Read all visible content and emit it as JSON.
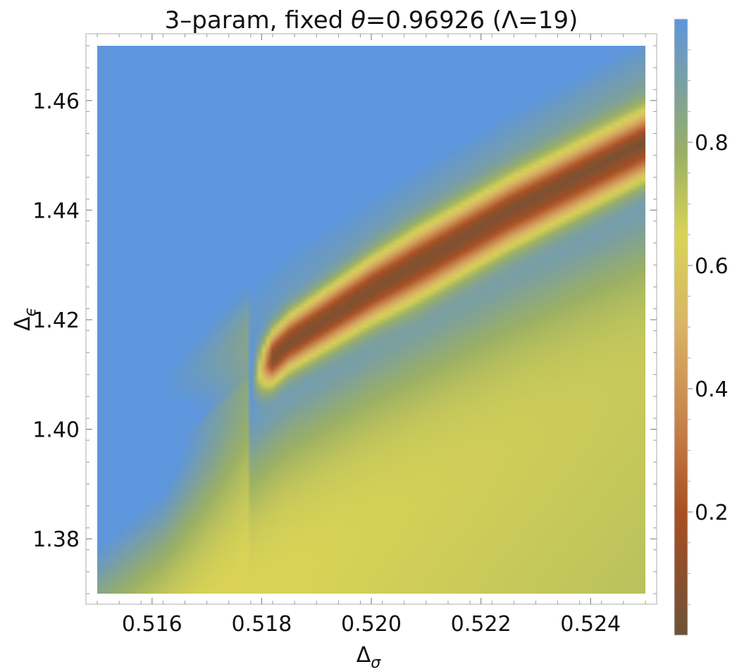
{
  "chart_data": {
    "type": "heatmap",
    "title": {
      "prefix": "3–param, fixed ",
      "theta_symbol": "θ",
      "theta_value": "=0.96926",
      "suffix": " (Λ=19)"
    },
    "xlabel": {
      "base": "Δ",
      "sub": "σ"
    },
    "ylabel": {
      "base": "Δ",
      "sub": "ϵ"
    },
    "xlim": [
      0.515,
      0.525
    ],
    "ylim": [
      1.37,
      1.47
    ],
    "xticks": [
      {
        "value": 0.516,
        "label": "0.516"
      },
      {
        "value": 0.518,
        "label": "0.518"
      },
      {
        "value": 0.52,
        "label": "0.520"
      },
      {
        "value": 0.522,
        "label": "0.522"
      },
      {
        "value": 0.524,
        "label": "0.524"
      }
    ],
    "yticks": [
      {
        "value": 1.38,
        "label": "1.38"
      },
      {
        "value": 1.4,
        "label": "1.40"
      },
      {
        "value": 1.42,
        "label": "1.42"
      },
      {
        "value": 1.44,
        "label": "1.44"
      },
      {
        "value": 1.46,
        "label": "1.46"
      }
    ],
    "colorbar": {
      "range": [
        0.0,
        1.0
      ],
      "ticks": [
        {
          "value": 0.2,
          "label": "0.2"
        },
        {
          "value": 0.4,
          "label": "0.4"
        },
        {
          "value": 0.6,
          "label": "0.6"
        },
        {
          "value": 0.8,
          "label": "0.8"
        }
      ],
      "colors": [
        "#6e5238",
        "#a94f22",
        "#c47e47",
        "#d9b366",
        "#d9d356",
        "#9bb064",
        "#7fa19a",
        "#5d96dc"
      ],
      "color_stops": [
        0.0,
        0.2,
        0.33,
        0.5,
        0.65,
        0.78,
        0.88,
        1.0
      ]
    },
    "valley": {
      "description_points": [
        {
          "x": 0.5178,
          "y": 1.4095
        },
        {
          "x": 0.5185,
          "y": 1.416
        },
        {
          "x": 0.52,
          "y": 1.4255
        },
        {
          "x": 0.5225,
          "y": 1.4395
        },
        {
          "x": 0.525,
          "y": 1.452
        }
      ],
      "min_value": 0.03
    },
    "grid": false
  }
}
